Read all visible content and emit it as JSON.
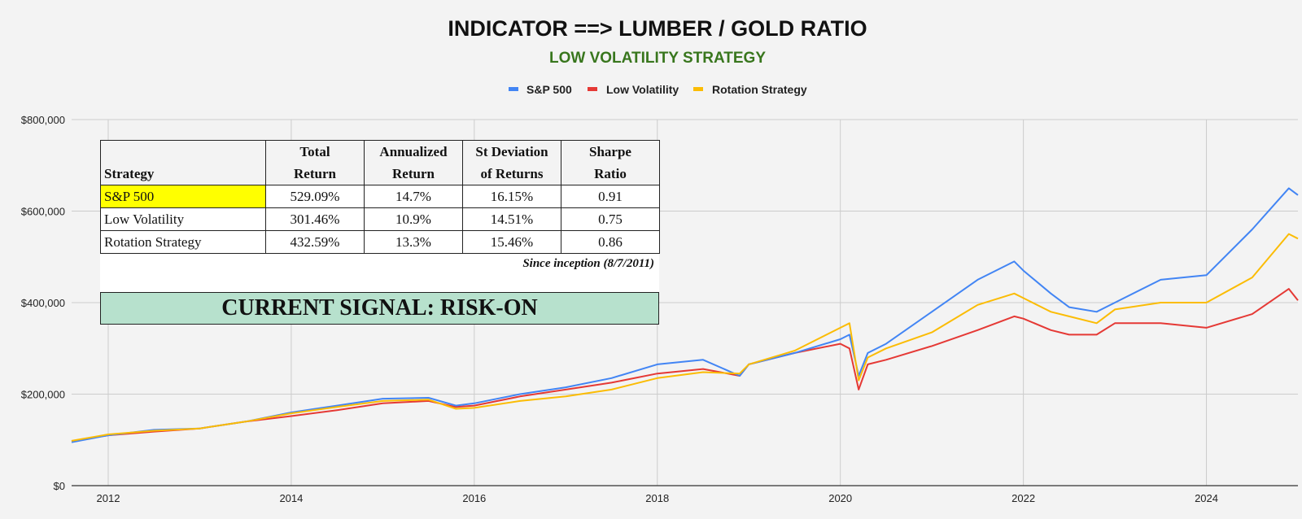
{
  "title": "INDICATOR ==> LUMBER / GOLD RATIO",
  "subtitle": "LOW VOLATILITY STRATEGY",
  "colors": {
    "sp500": "#4285f4",
    "low_vol": "#e53935",
    "rotation": "#fbbc04",
    "subtitle": "#38761d",
    "signal_bg": "#b7e1cd",
    "highlight": "#ffff00"
  },
  "stats_table": {
    "headers": [
      {
        "line1": "",
        "line2": "Strategy"
      },
      {
        "line1": "Total",
        "line2": "Return"
      },
      {
        "line1": "Annualized",
        "line2": "Return"
      },
      {
        "line1": "St Deviation",
        "line2": "of Returns"
      },
      {
        "line1": "Sharpe",
        "line2": "Ratio"
      }
    ],
    "rows": [
      {
        "strategy": "S&P 500",
        "total_return": "529.09%",
        "annualized_return": "14.7%",
        "st_deviation": "16.15%",
        "sharpe": "0.91"
      },
      {
        "strategy": "Low Volatility",
        "total_return": "301.46%",
        "annualized_return": "10.9%",
        "st_deviation": "14.51%",
        "sharpe": "0.75"
      },
      {
        "strategy": "Rotation Strategy",
        "total_return": "432.59%",
        "annualized_return": "13.3%",
        "st_deviation": "15.46%",
        "sharpe": "0.86"
      }
    ],
    "note": "Since inception (8/7/2011)"
  },
  "signal": "CURRENT SIGNAL: RISK-ON",
  "chart_data": {
    "type": "line",
    "title": "INDICATOR ==> LUMBER / GOLD RATIO",
    "subtitle": "LOW VOLATILITY STRATEGY",
    "xlabel": "",
    "ylabel": "",
    "xlim": [
      2011.6,
      2025.0
    ],
    "ylim": [
      0,
      800000
    ],
    "x_ticks": [
      2012,
      2014,
      2016,
      2018,
      2020,
      2022,
      2024
    ],
    "x_tick_labels": [
      "2012",
      "2014",
      "2016",
      "2018",
      "2020",
      "2022",
      "2024"
    ],
    "y_ticks": [
      0,
      200000,
      400000,
      600000,
      800000
    ],
    "y_tick_labels": [
      "$0",
      "$200,000",
      "$400,000",
      "$600,000",
      "$800,000"
    ],
    "grid": true,
    "legend": "top-center",
    "x": [
      2011.6,
      2012.0,
      2012.5,
      2013.0,
      2013.5,
      2014.0,
      2014.5,
      2015.0,
      2015.5,
      2015.8,
      2016.0,
      2016.5,
      2017.0,
      2017.5,
      2018.0,
      2018.5,
      2018.9,
      2019.0,
      2019.5,
      2020.0,
      2020.1,
      2020.2,
      2020.3,
      2020.5,
      2021.0,
      2021.5,
      2021.9,
      2022.0,
      2022.3,
      2022.5,
      2022.8,
      2023.0,
      2023.5,
      2024.0,
      2024.5,
      2024.9,
      2025.0
    ],
    "series": [
      {
        "name": "S&P 500",
        "values": [
          95000,
          110000,
          122000,
          125000,
          140000,
          160000,
          175000,
          190000,
          192000,
          175000,
          180000,
          200000,
          215000,
          235000,
          265000,
          275000,
          240000,
          265000,
          290000,
          320000,
          330000,
          240000,
          290000,
          310000,
          380000,
          450000,
          490000,
          470000,
          420000,
          390000,
          380000,
          400000,
          450000,
          460000,
          560000,
          650000,
          635000
        ]
      },
      {
        "name": "Low Volatility",
        "values": [
          97000,
          110000,
          118000,
          125000,
          140000,
          152000,
          165000,
          180000,
          185000,
          172000,
          175000,
          195000,
          210000,
          225000,
          245000,
          255000,
          240000,
          265000,
          290000,
          310000,
          300000,
          210000,
          265000,
          275000,
          305000,
          340000,
          370000,
          365000,
          340000,
          330000,
          330000,
          355000,
          355000,
          345000,
          375000,
          430000,
          405000
        ]
      },
      {
        "name": "Rotation Strategy",
        "values": [
          98000,
          112000,
          120000,
          125000,
          140000,
          158000,
          172000,
          185000,
          188000,
          168000,
          170000,
          185000,
          195000,
          210000,
          235000,
          248000,
          245000,
          265000,
          295000,
          345000,
          355000,
          230000,
          280000,
          300000,
          335000,
          395000,
          420000,
          410000,
          380000,
          370000,
          355000,
          385000,
          400000,
          400000,
          455000,
          550000,
          540000
        ]
      }
    ]
  }
}
